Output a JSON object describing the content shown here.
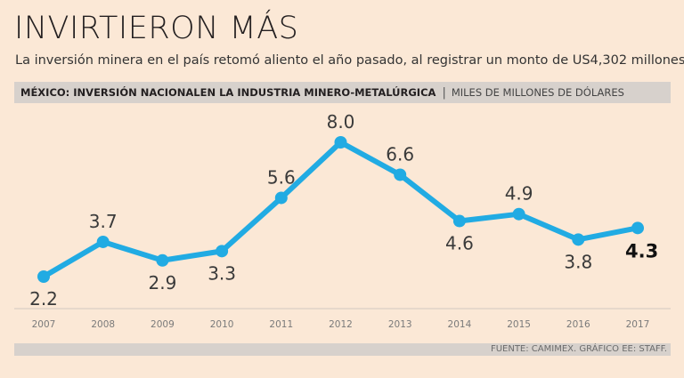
{
  "title": "INVIRTIERON MÁS",
  "subtitle": "La inversión minera en el país retomó aliento el año pasado, al registrar un monto de US4,302 millones.",
  "chart_header": {
    "main": "MÉXICO: INVERSIÓN NACIONALEN LA INDUSTRIA MINERO-METALÚRGICA",
    "separator": "|",
    "unit": "MILES DE MILLONES DE DÓLARES"
  },
  "footer": "FUENTE: CAMIMEX. GRÁFICO EE: STAFF.",
  "colors": {
    "line": "#21abe3",
    "background": "#fbe8d6",
    "band": "#d7d1cc"
  },
  "chart_data": {
    "type": "line",
    "title": "MÉXICO: INVERSIÓN NACIONALEN LA INDUSTRIA MINERO-METALÚRGICA",
    "ylabel": "MILES DE MILLONES DE DÓLARES",
    "xlabel": "",
    "categories": [
      "2007",
      "2008",
      "2009",
      "2010",
      "2011",
      "2012",
      "2013",
      "2014",
      "2015",
      "2016",
      "2017"
    ],
    "values": [
      2.2,
      3.7,
      2.9,
      3.3,
      5.6,
      8.0,
      6.6,
      4.6,
      4.9,
      3.8,
      4.3
    ],
    "labels": [
      "2.2",
      "3.7",
      "2.9",
      "3.3",
      "5.6",
      "8.0",
      "6.6",
      "4.6",
      "4.9",
      "3.8",
      "4.3"
    ],
    "label_positions": [
      "below",
      "above",
      "below",
      "below",
      "above",
      "above",
      "above",
      "below",
      "above",
      "below",
      "right"
    ],
    "highlight_last": true,
    "ylim": [
      0,
      9
    ],
    "grid": false
  }
}
